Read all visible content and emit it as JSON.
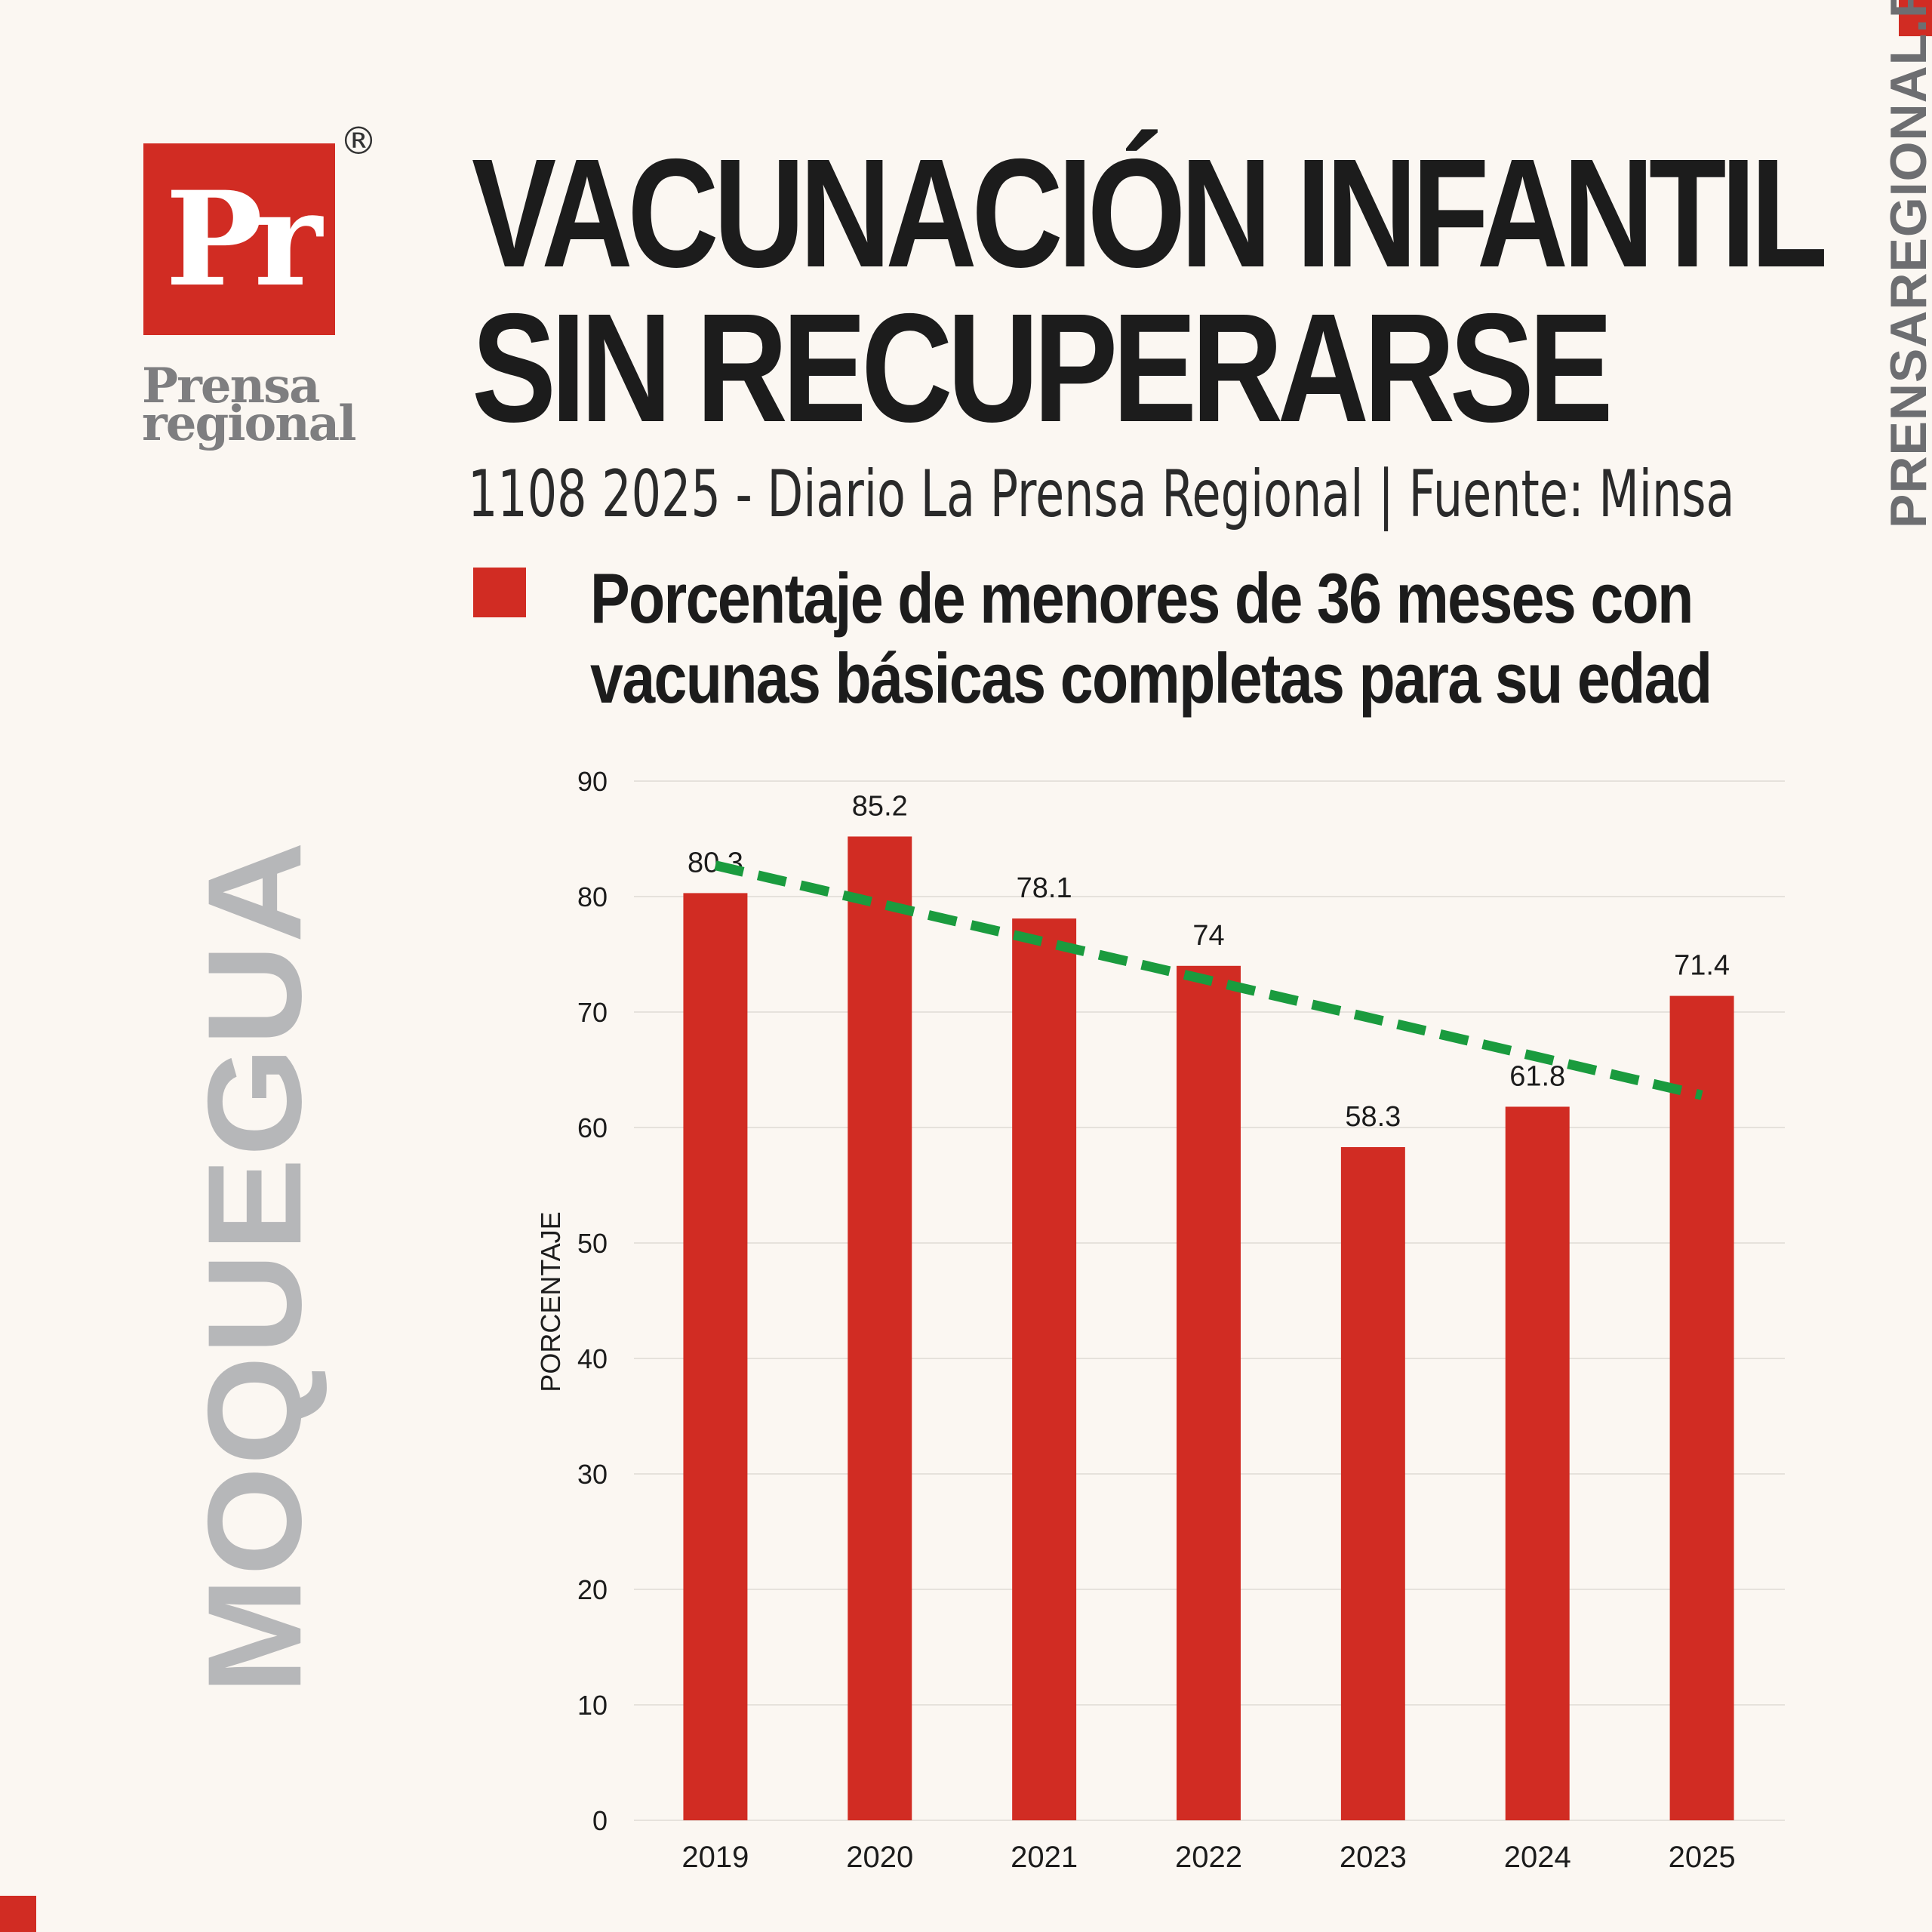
{
  "brand": {
    "logo_mark": "Pr",
    "registered": "®",
    "name_line1": "Prensa",
    "name_line2": "regional",
    "site": "PRENSAREGIONAL.PE"
  },
  "header": {
    "title_line1": "VACUNACIÓN INFANTIL",
    "title_line2": "SIN RECUPERARSE",
    "subtitle": "1108 2025 - Diario La Prensa Regional | Fuente: Minsa"
  },
  "legend": {
    "line1": "Porcentaje de menores de 36 meses con",
    "line2": "vacunas básicas completas para su edad"
  },
  "region": "MOQUEGUA",
  "colors": {
    "bar": "#d12c23",
    "trend": "#1a9b3e",
    "grid": "#e6e2dc",
    "text": "#1c1c1c"
  },
  "chart_data": {
    "type": "bar",
    "categories": [
      "2019",
      "2020",
      "2021",
      "2022",
      "2023",
      "2024",
      "2025"
    ],
    "series": [
      {
        "values": [
          80.3,
          85.2,
          78.1,
          74,
          58.3,
          61.8,
          71.4
        ],
        "labels": [
          "80.3",
          "85.2",
          "78.1",
          "74",
          "58.3",
          "61.8",
          "71.4"
        ]
      }
    ],
    "trendline": {
      "style": "dashed",
      "start": 82.7,
      "end": 62.8
    },
    "ylabel": "PORCENTAJE",
    "ylim": [
      0,
      90
    ],
    "yticks": [
      0,
      10,
      20,
      30,
      40,
      50,
      60,
      70,
      80,
      90
    ],
    "grid": true
  }
}
